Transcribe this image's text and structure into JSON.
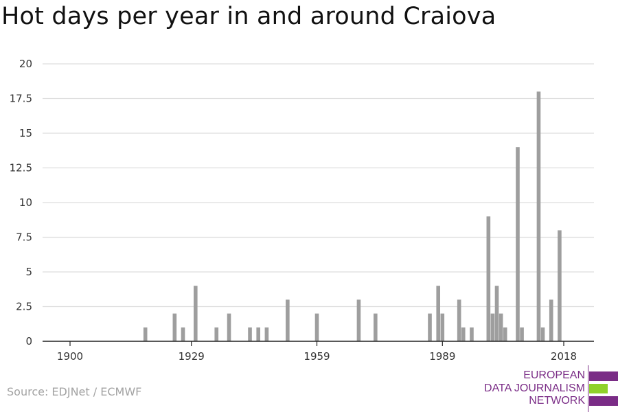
{
  "title": "Hot days per year in and around Craiova",
  "source": "Source: EDJNet / ECMWF",
  "logo": {
    "lines": [
      "EUROPEAN",
      "DATA JOURNALISM",
      "NETWORK"
    ],
    "colors": {
      "purple": "#7a2c86",
      "green": "#8fd12a"
    }
  },
  "colors": {
    "bar": "#9e9e9e",
    "grid": "#dddddd",
    "axis": "#222222",
    "tick_text": "#333333"
  },
  "chart_data": {
    "type": "bar",
    "title": "Hot days per year in and around Craiova",
    "xlabel": "",
    "ylabel": "",
    "xlim": [
      1900,
      2018
    ],
    "ylim": [
      0,
      20
    ],
    "x_ticks": [
      1900,
      1929,
      1959,
      1989,
      2018
    ],
    "y_ticks": [
      "0",
      "2.5",
      "5",
      "7.5",
      "10",
      "12.5",
      "15",
      "17.5",
      "20"
    ],
    "grid": "horizontal",
    "x": [
      1918,
      1925,
      1927,
      1930,
      1935,
      1938,
      1943,
      1945,
      1947,
      1952,
      1959,
      1969,
      1973,
      1986,
      1988,
      1989,
      1993,
      1994,
      1996,
      2000,
      2001,
      2002,
      2003,
      2004,
      2007,
      2008,
      2012,
      2013,
      2015,
      2017
    ],
    "values": [
      1,
      2,
      1,
      4,
      1,
      2,
      1,
      1,
      1,
      3,
      2,
      3,
      2,
      2,
      4,
      2,
      3,
      1,
      1,
      9,
      2,
      4,
      2,
      1,
      14,
      1,
      18,
      1,
      3,
      8
    ]
  }
}
